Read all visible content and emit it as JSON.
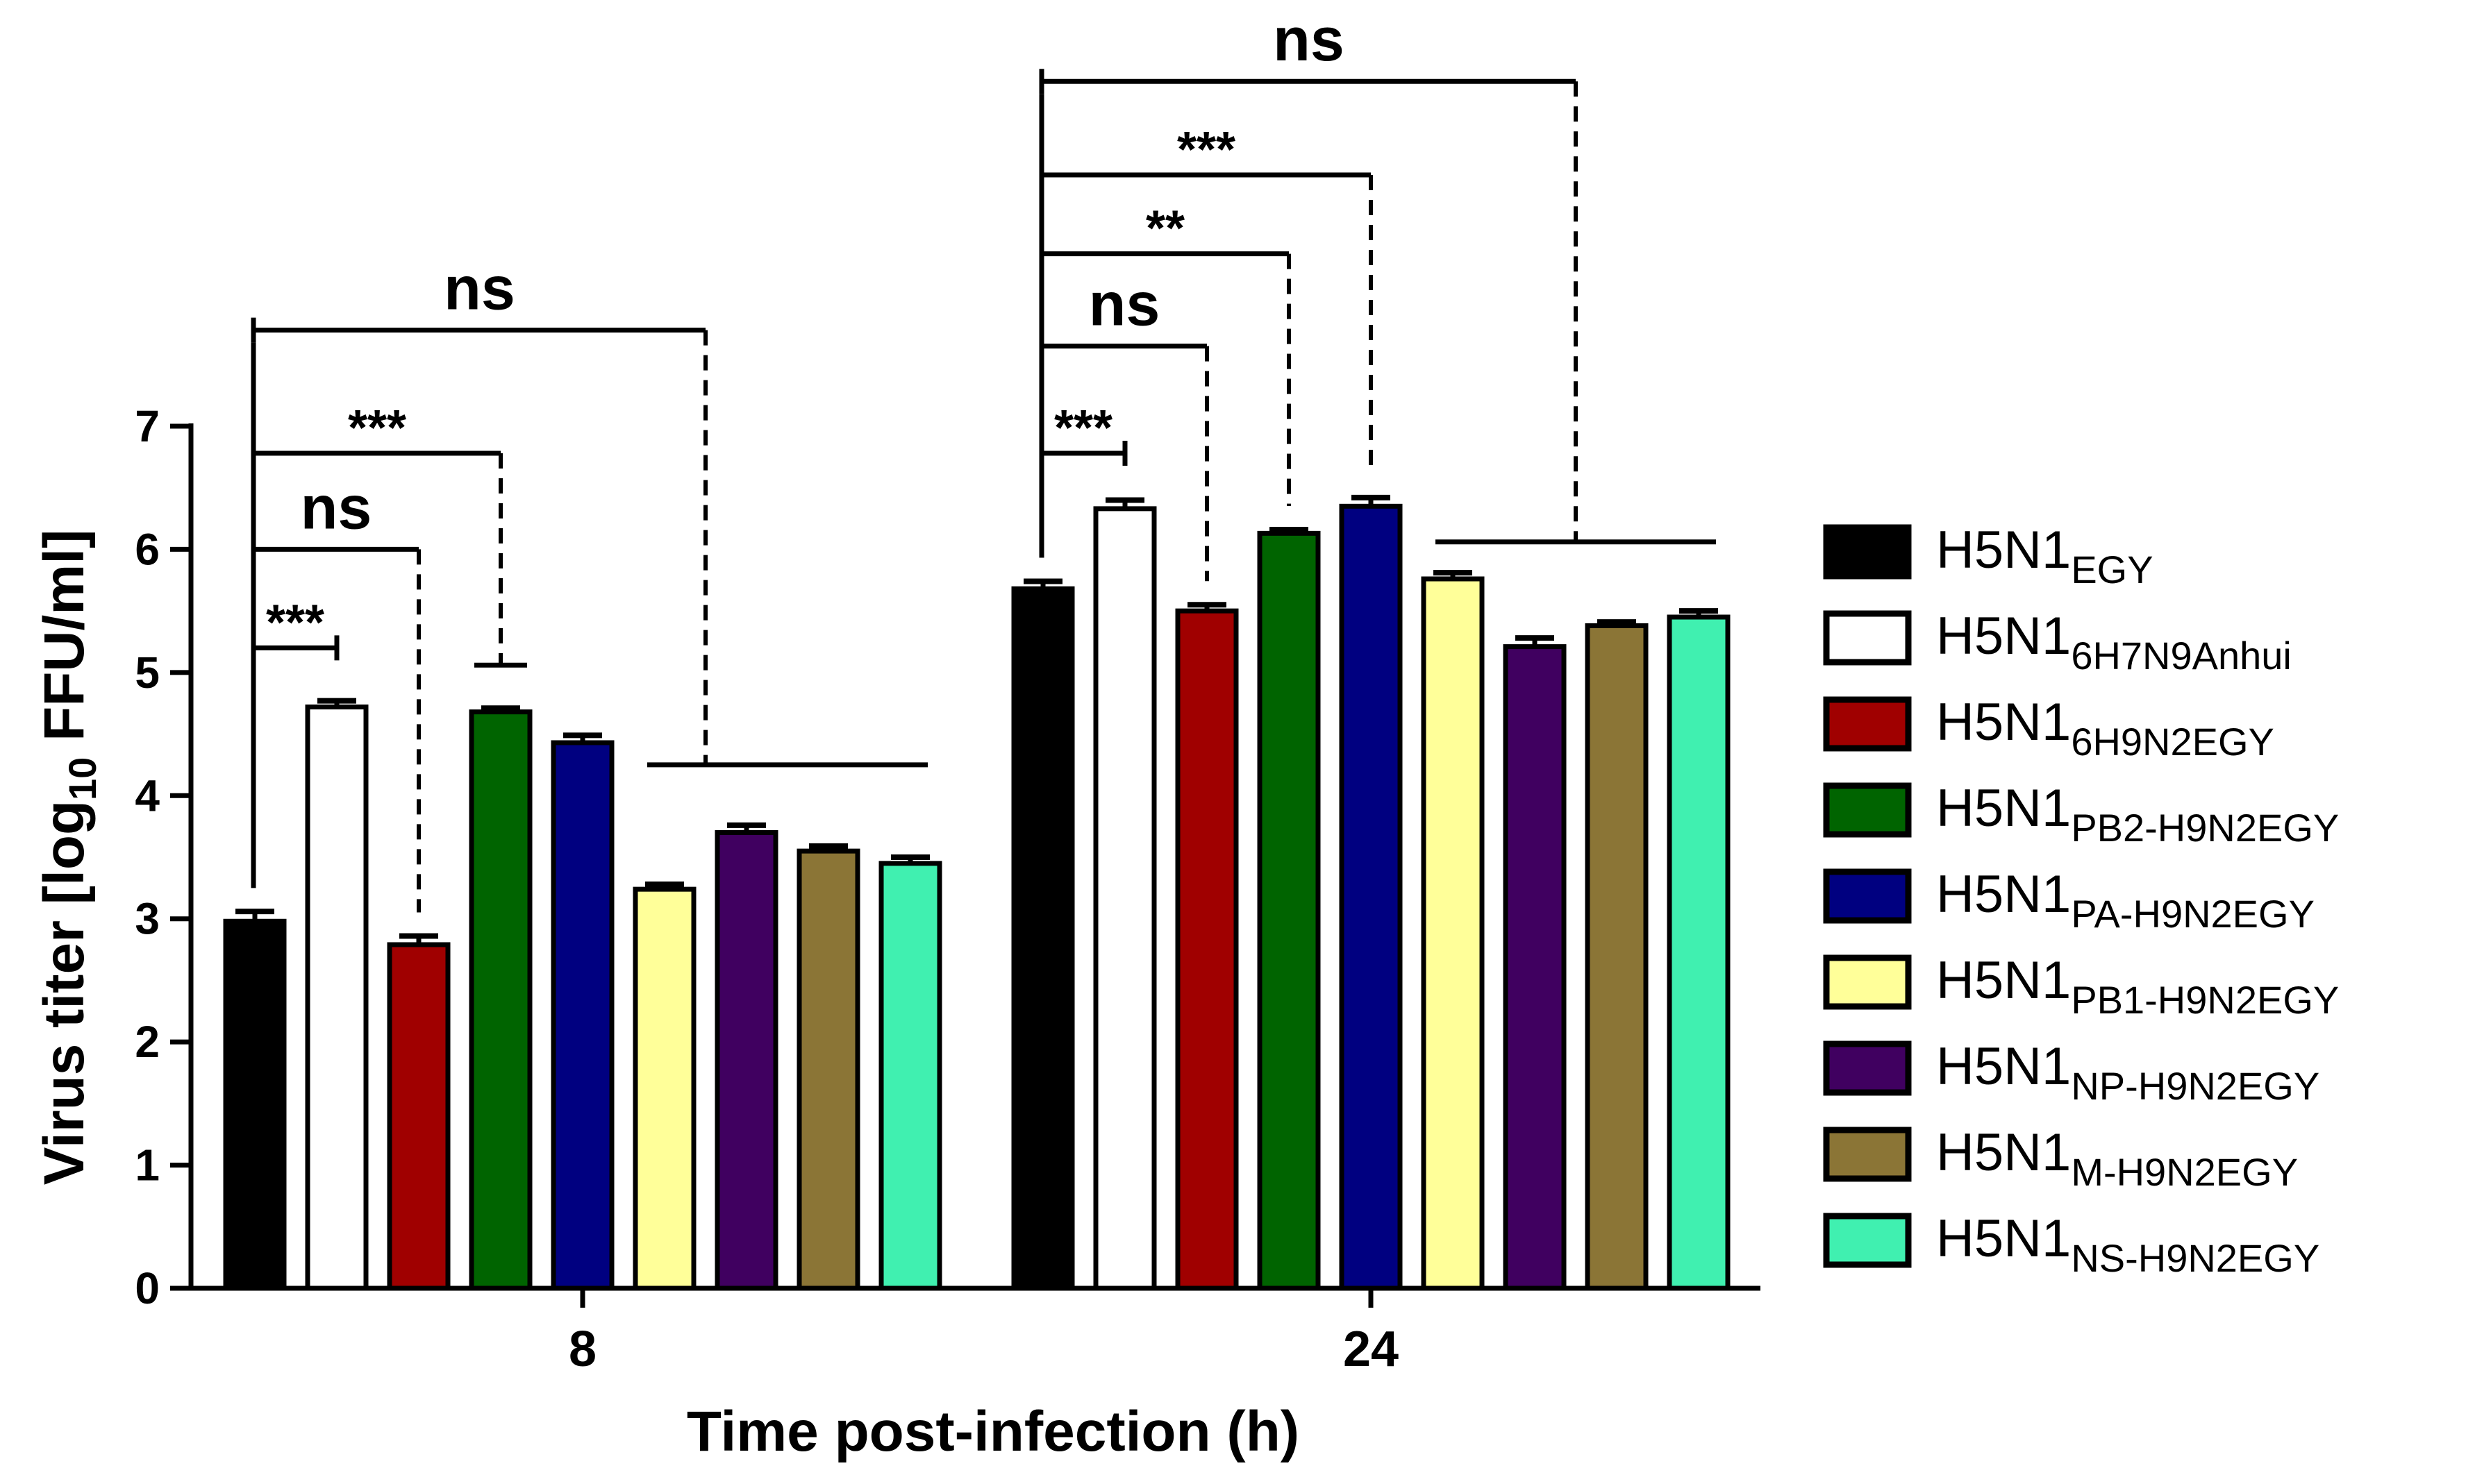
{
  "chart_data": {
    "type": "bar",
    "title": "",
    "xlabel": "Time post-infection (h)",
    "ylabel": "Virus titer [log10 FFU/ml]",
    "ylabel_parts": {
      "pre": "Virus titer [log",
      "sub": "10",
      "post": " FFU/ml]"
    },
    "ylim": [
      0,
      7
    ],
    "yticks": [
      0,
      1,
      2,
      3,
      4,
      5,
      6,
      7
    ],
    "categories": [
      "8",
      "24"
    ],
    "grid": false,
    "legend_position": "right",
    "series": [
      {
        "name": "H5N1EGY",
        "base": "H5N1",
        "sub": "EGY",
        "color": "#000000",
        "values": [
          2.98,
          5.68
        ],
        "errors": [
          0.08,
          0.06
        ]
      },
      {
        "name": "H5N16H7N9Anhui",
        "base": "H5N1",
        "sub": "6H7N9Anhui",
        "color": "#ffffff",
        "values": [
          4.72,
          6.33
        ],
        "errors": [
          0.05,
          0.07
        ]
      },
      {
        "name": "H5N16H9N2EGY",
        "base": "H5N1",
        "sub": "6H9N2EGY",
        "color": "#a00000",
        "values": [
          2.79,
          5.5
        ],
        "errors": [
          0.07,
          0.05
        ]
      },
      {
        "name": "H5N1PB2-H9N2EGY",
        "base": "H5N1",
        "sub": "PB2-H9N2EGY",
        "color": "#006400",
        "values": [
          4.68,
          6.13
        ],
        "errors": [
          0.03,
          0.03
        ]
      },
      {
        "name": "H5N1PA-H9N2EGY",
        "base": "H5N1",
        "sub": "PA-H9N2EGY",
        "color": "#000080",
        "values": [
          4.43,
          6.35
        ],
        "errors": [
          0.06,
          0.07
        ]
      },
      {
        "name": "H5N1PB1-H9N2EGY",
        "base": "H5N1",
        "sub": "PB1-H9N2EGY",
        "color": "#ffff99",
        "values": [
          3.24,
          5.76
        ],
        "errors": [
          0.04,
          0.05
        ]
      },
      {
        "name": "H5N1NP-H9N2EGY",
        "base": "H5N1",
        "sub": "NP-H9N2EGY",
        "color": "#400060",
        "values": [
          3.7,
          5.21
        ],
        "errors": [
          0.06,
          0.07
        ]
      },
      {
        "name": "H5N1M-H9N2EGY",
        "base": "H5N1",
        "sub": "M-H9N2EGY",
        "color": "#8b7536",
        "values": [
          3.55,
          5.38
        ],
        "errors": [
          0.04,
          0.03
        ]
      },
      {
        "name": "H5N1NS-H9N2EGY",
        "base": "H5N1",
        "sub": "NS-H9N2EGY",
        "color": "#40f0b0",
        "values": [
          3.45,
          5.45
        ],
        "errors": [
          0.05,
          0.05
        ]
      }
    ],
    "annotations": [
      {
        "group": 0,
        "from": 0,
        "to": 1,
        "label": "***",
        "y": 5.2,
        "dashed": false
      },
      {
        "group": 0,
        "from": 0,
        "to": 2,
        "label": "ns",
        "y": 6.0,
        "dashed": true
      },
      {
        "group": 0,
        "from": 0,
        "to": 3,
        "label": "***",
        "y": 6.78,
        "dashed": true,
        "end_cap_y": 5.06
      },
      {
        "group": 0,
        "from": 0,
        "to": 5.5,
        "label": "ns",
        "y": 7.78,
        "dashed": true,
        "span": [
          5,
          8
        ],
        "span_y": 4.25
      },
      {
        "group": 1,
        "from": 0,
        "to": 1,
        "label": "***",
        "y": 6.78,
        "dashed": false
      },
      {
        "group": 1,
        "from": 0,
        "to": 2,
        "label": "ns",
        "y": 7.65,
        "dashed": true
      },
      {
        "group": 1,
        "from": 0,
        "to": 3,
        "label": "**",
        "y": 8.4,
        "dashed": true
      },
      {
        "group": 1,
        "from": 0,
        "to": 4,
        "label": "***",
        "y": 9.04,
        "dashed": true
      },
      {
        "group": 1,
        "from": 0,
        "to": 6.5,
        "label": "ns",
        "y": 9.8,
        "dashed": true,
        "span": [
          5,
          8
        ],
        "span_y": 6.06
      }
    ]
  }
}
